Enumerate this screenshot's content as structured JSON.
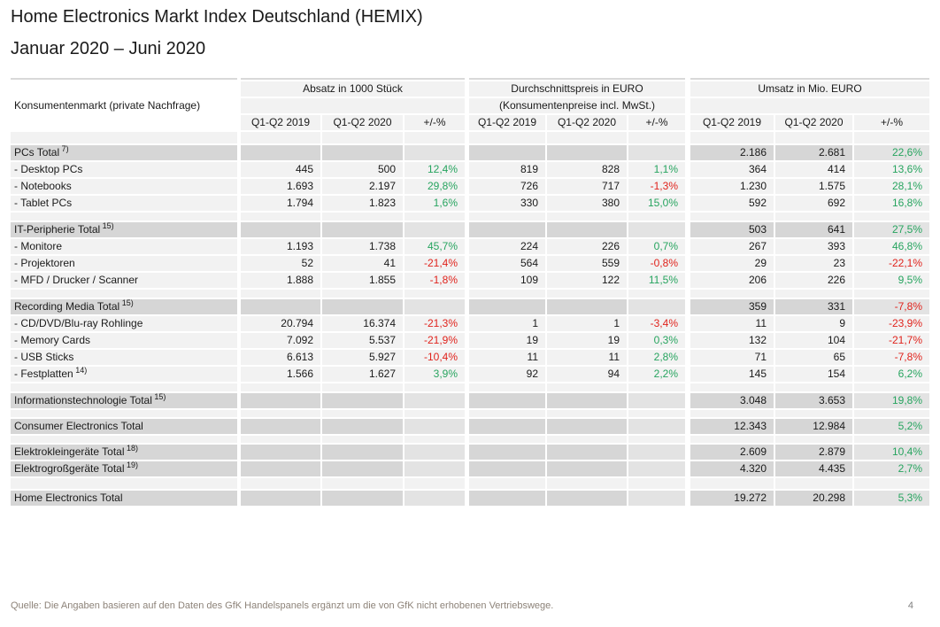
{
  "page": {
    "title": "Home Electronics Markt Index Deutschland (HEMIX)",
    "subtitle": "Januar 2020 – Juni 2020",
    "footer_source": "Quelle: Die Angaben basieren auf den Daten des GfK Handelspanels ergänzt um die von GfK nicht erhobenen Vertriebswege.",
    "page_number": "4"
  },
  "colors": {
    "section_bg": "#d6d6d6",
    "section_pct_bg": "#e3e3e3",
    "data_row_bg": "#f2f2f2",
    "positive_pct": "#27a45f",
    "negative_pct": "#e0231c"
  },
  "table": {
    "label_header": "Konsumentenmarkt (private Nachfrage)",
    "groups": [
      {
        "title": "Absatz in 1000 Stück",
        "subtitle": ""
      },
      {
        "title": "Durchschnittspreis in EURO",
        "subtitle": "(Konsumentenpreise incl. MwSt.)"
      },
      {
        "title": "Umsatz in Mio. EURO",
        "subtitle": ""
      }
    ],
    "column_headers": [
      "Q1-Q2 2019",
      "Q1-Q2 2020",
      "+/-%"
    ],
    "rows": [
      {
        "type": "spacer",
        "h": 15
      },
      {
        "type": "section",
        "label": "PCs Total",
        "sup": "7)",
        "a": [
          "",
          "",
          ""
        ],
        "p": [
          "",
          "",
          ""
        ],
        "u": [
          "2.186",
          "2.681",
          "22,6%"
        ]
      },
      {
        "type": "data",
        "label": "- Desktop PCs",
        "sup": "",
        "a": [
          "445",
          "500",
          "12,4%"
        ],
        "p": [
          "819",
          "828",
          "1,1%"
        ],
        "u": [
          "364",
          "414",
          "13,6%"
        ]
      },
      {
        "type": "data",
        "label": "- Notebooks",
        "sup": "",
        "a": [
          "1.693",
          "2.197",
          "29,8%"
        ],
        "p": [
          "726",
          "717",
          "-1,3%"
        ],
        "u": [
          "1.230",
          "1.575",
          "28,1%"
        ]
      },
      {
        "type": "data",
        "label": "- Tablet PCs",
        "sup": "",
        "a": [
          "1.794",
          "1.823",
          "1,6%"
        ],
        "p": [
          "330",
          "380",
          "15,0%"
        ],
        "u": [
          "592",
          "692",
          "16,8%"
        ]
      },
      {
        "type": "spacer",
        "h": 11
      },
      {
        "type": "section",
        "label": "IT-Peripherie Total",
        "sup": "15)",
        "a": [
          "",
          "",
          ""
        ],
        "p": [
          "",
          "",
          ""
        ],
        "u": [
          "503",
          "641",
          "27,5%"
        ]
      },
      {
        "type": "data",
        "label": "- Monitore",
        "sup": "",
        "a": [
          "1.193",
          "1.738",
          "45,7%"
        ],
        "p": [
          "224",
          "226",
          "0,7%"
        ],
        "u": [
          "267",
          "393",
          "46,8%"
        ]
      },
      {
        "type": "data",
        "label": "- Projektoren",
        "sup": "",
        "a": [
          "52",
          "41",
          "-21,4%"
        ],
        "p": [
          "564",
          "559",
          "-0,8%"
        ],
        "u": [
          "29",
          "23",
          "-22,1%"
        ]
      },
      {
        "type": "data",
        "label": "- MFD / Drucker / Scanner",
        "sup": "",
        "a": [
          "1.888",
          "1.855",
          "-1,8%"
        ],
        "p": [
          "109",
          "122",
          "11,5%"
        ],
        "u": [
          "206",
          "226",
          "9,5%"
        ]
      },
      {
        "type": "spacer",
        "h": 11
      },
      {
        "type": "section",
        "label": "Recording Media Total",
        "sup": "15)",
        "a": [
          "",
          "",
          ""
        ],
        "p": [
          "",
          "",
          ""
        ],
        "u": [
          "359",
          "331",
          "-7,8%"
        ]
      },
      {
        "type": "data",
        "label": "- CD/DVD/Blu-ray Rohlinge",
        "sup": "",
        "a": [
          "20.794",
          "16.374",
          "-21,3%"
        ],
        "p": [
          "1",
          "1",
          "-3,4%"
        ],
        "u": [
          "11",
          "9",
          "-23,9%"
        ]
      },
      {
        "type": "data",
        "label": "- Memory Cards",
        "sup": "",
        "a": [
          "7.092",
          "5.537",
          "-21,9%"
        ],
        "p": [
          "19",
          "19",
          "0,3%"
        ],
        "u": [
          "132",
          "104",
          "-21,7%"
        ]
      },
      {
        "type": "data",
        "label": "- USB Sticks",
        "sup": "",
        "a": [
          "6.613",
          "5.927",
          "-10,4%"
        ],
        "p": [
          "11",
          "11",
          "2,8%"
        ],
        "u": [
          "71",
          "65",
          "-7,8%"
        ]
      },
      {
        "type": "data",
        "label": "- Festplatten",
        "sup": "14)",
        "a": [
          "1.566",
          "1.627",
          "3,9%"
        ],
        "p": [
          "92",
          "94",
          "2,2%"
        ],
        "u": [
          "145",
          "154",
          "6,2%"
        ]
      },
      {
        "type": "spacer",
        "h": 11
      },
      {
        "type": "section",
        "label": "Informationstechnologie Total",
        "sup": "15)",
        "a": [
          "",
          "",
          ""
        ],
        "p": [
          "",
          "",
          ""
        ],
        "u": [
          "3.048",
          "3.653",
          "19,8%"
        ]
      },
      {
        "type": "spacer",
        "h": 10
      },
      {
        "type": "section",
        "label": "Consumer Electronics Total",
        "sup": "",
        "a": [
          "",
          "",
          ""
        ],
        "p": [
          "",
          "",
          ""
        ],
        "u": [
          "12.343",
          "12.984",
          "5,2%"
        ]
      },
      {
        "type": "spacer",
        "h": 10
      },
      {
        "type": "section",
        "label": "Elektrokleingeräte Total",
        "sup": "18)",
        "a": [
          "",
          "",
          ""
        ],
        "p": [
          "",
          "",
          ""
        ],
        "u": [
          "2.609",
          "2.879",
          "10,4%"
        ]
      },
      {
        "type": "section",
        "label": "Elektrogroßgeräte Total",
        "sup": "19)",
        "a": [
          "",
          "",
          ""
        ],
        "p": [
          "",
          "",
          ""
        ],
        "u": [
          "4.320",
          "4.435",
          "2,7%"
        ]
      },
      {
        "type": "spacer",
        "h": 14
      },
      {
        "type": "section",
        "label": "Home Electronics Total",
        "sup": "",
        "a": [
          "",
          "",
          ""
        ],
        "p": [
          "",
          "",
          ""
        ],
        "u": [
          "19.272",
          "20.298",
          "5,3%"
        ]
      }
    ]
  }
}
